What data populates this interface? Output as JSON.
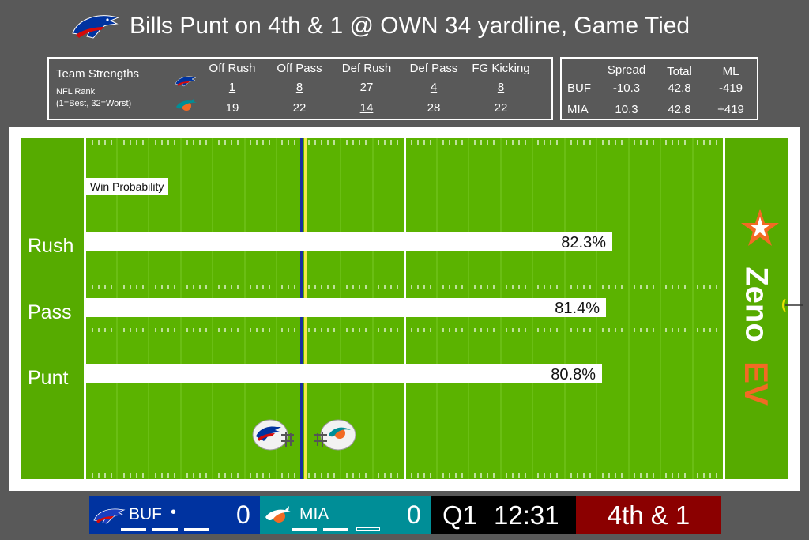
{
  "title": "Bills Punt on 4th & 1 @ OWN 34 yardline, Game Tied",
  "colors": {
    "background": "#595959",
    "field": "#5bb300",
    "bills_blue": "#0033a0",
    "bills_red": "#d50a0a",
    "dolphins_aqua": "#008e97",
    "dolphins_orange": "#f26a24",
    "down_box": "#8b0000",
    "brand_orange": "#f26a24"
  },
  "strengths": {
    "heading": "Team Strengths",
    "subheading": "NFL Rank",
    "note": "(1=Best, 32=Worst)",
    "columns": [
      "Off Rush",
      "Off Pass",
      "Def Rush",
      "Def Pass",
      "FG Kicking"
    ],
    "rows": [
      {
        "team_icon": "bills-logo-icon",
        "values": [
          "1",
          "8",
          "27",
          "4",
          "8"
        ],
        "underlined": [
          true,
          true,
          false,
          true,
          true
        ]
      },
      {
        "team_icon": "dolphins-logo-icon",
        "values": [
          "19",
          "22",
          "14",
          "28",
          "22"
        ],
        "underlined": [
          false,
          false,
          true,
          false,
          false
        ]
      }
    ]
  },
  "odds": {
    "columns": [
      "Spread",
      "Total",
      "ML"
    ],
    "rows": [
      {
        "team": "BUF",
        "spread": "-10.3",
        "total": "42.8",
        "ml": "-419"
      },
      {
        "team": "MIA",
        "spread": "10.3",
        "total": "42.8",
        "ml": "+419"
      }
    ]
  },
  "field": {
    "win_probability_label": "Win Probability",
    "plays": [
      {
        "label": "Rush",
        "value": "82.3%",
        "probability": 0.823
      },
      {
        "label": "Pass",
        "value": "81.4%",
        "probability": 0.814
      },
      {
        "label": "Punt",
        "value": "80.8%",
        "probability": 0.808
      }
    ],
    "brand_top": "Zeno",
    "brand_bottom": "EV"
  },
  "scorebug": {
    "home_team": "BUF",
    "home_score": "0",
    "possession_marker": "•",
    "away_team": "MIA",
    "away_score": "0",
    "quarter": "Q1",
    "clock": "12:31",
    "down_distance": "4th & 1"
  }
}
